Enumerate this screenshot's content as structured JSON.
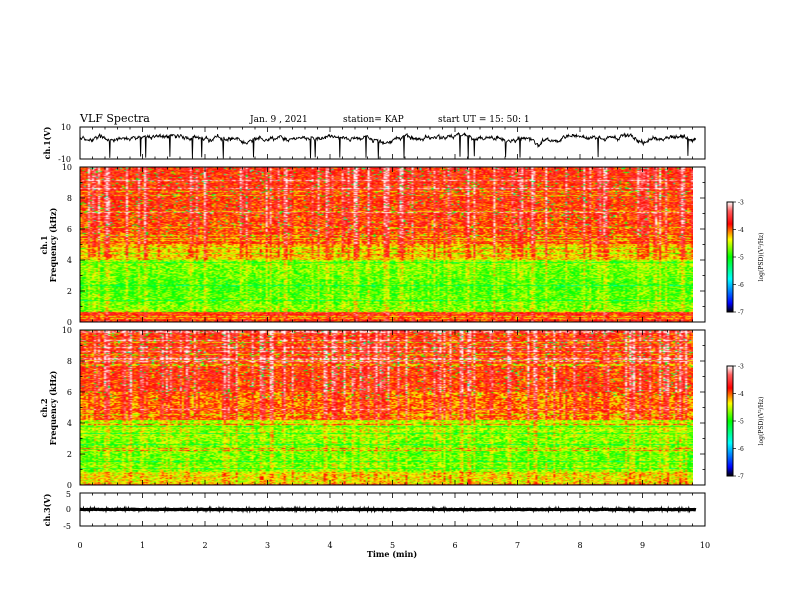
{
  "header": {
    "title": "VLF Spectra",
    "date": "Jan. 9 , 2021",
    "station": "station= KAP",
    "start": "start UT = 15: 50: 1"
  },
  "chart_data": [
    {
      "type": "line",
      "name": "ch1-waveform",
      "ylabel": "ch.1(V)",
      "ylim": [
        -10,
        10
      ],
      "yticks": [
        "10",
        "-10"
      ],
      "x_range_min": [
        0,
        9.85
      ],
      "level_mean": 3,
      "noise": "high"
    },
    {
      "type": "heatmap",
      "name": "ch1-spectrogram",
      "ylabel": "ch.1\nFrequency (kHz)",
      "ylim": [
        0,
        10
      ],
      "yticks": [
        "0",
        "2",
        "4",
        "6",
        "8",
        "10"
      ],
      "x_range_min": [
        0,
        9.85
      ],
      "colorbar": {
        "label": "log(PSD)(V²/Hz)",
        "range": [
          -7,
          -3
        ],
        "ticks": [
          "-3",
          "-4",
          "-5",
          "-6",
          "-7"
        ]
      }
    },
    {
      "type": "heatmap",
      "name": "ch2-spectrogram",
      "ylabel": "ch.2\nFrequency (kHz)",
      "ylim": [
        0,
        10
      ],
      "yticks": [
        "0",
        "2",
        "4",
        "6",
        "8",
        "10"
      ],
      "x_range_min": [
        0,
        9.85
      ],
      "colorbar": {
        "label": "log(PSD)(V²/Hz)",
        "range": [
          -7,
          -3
        ],
        "ticks": [
          "-3",
          "-4",
          "-5",
          "-6",
          "-7"
        ]
      }
    },
    {
      "type": "line",
      "name": "ch3-waveform",
      "ylabel": "ch.3(V)",
      "ylim": [
        -5,
        5
      ],
      "yticks": [
        "5",
        "0",
        "-5"
      ],
      "x_range_min": [
        0,
        9.85
      ],
      "level_mean": 0,
      "noise": "low"
    }
  ],
  "xaxis": {
    "label": "Time (min)",
    "range": [
      0,
      10
    ],
    "ticks": [
      "0",
      "1",
      "2",
      "3",
      "4",
      "5",
      "6",
      "7",
      "8",
      "9",
      "10"
    ]
  },
  "colors": {
    "cmap": [
      "#000000",
      "#0000ff",
      "#00ffff",
      "#00ff00",
      "#ffff00",
      "#ff0000",
      "#ffffff"
    ]
  }
}
